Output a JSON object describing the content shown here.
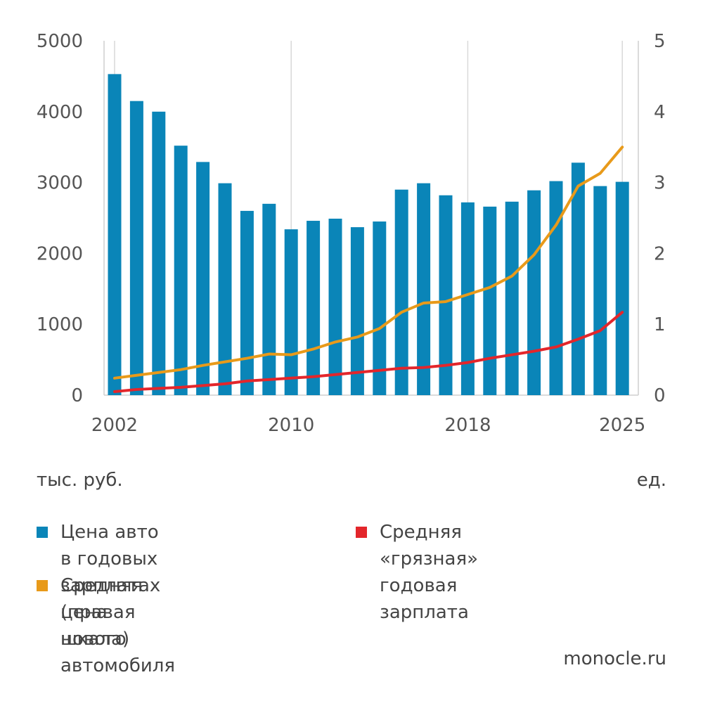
{
  "chart_data": {
    "type": "bar",
    "x": [
      2002,
      2003,
      2004,
      2005,
      2006,
      2007,
      2008,
      2009,
      2010,
      2011,
      2012,
      2013,
      2014,
      2015,
      2016,
      2017,
      2018,
      2019,
      2020,
      2021,
      2022,
      2023,
      2024,
      2025
    ],
    "x_tick_labels": [
      "2002",
      "2010",
      "2018",
      "2025"
    ],
    "y_left_ticks": [
      "0",
      "1000",
      "2000",
      "3000",
      "4000",
      "5000"
    ],
    "y_right_ticks": [
      "0",
      "1",
      "2",
      "3",
      "4",
      "5"
    ],
    "ylim_left": [
      0,
      5000
    ],
    "ylim_right": [
      0,
      5
    ],
    "grid": "vertical",
    "left_unit_label": "тыс. руб.",
    "right_unit_label": "ед.",
    "series": [
      {
        "name": "Цена авто в годовых зарплатах (правая шкала)",
        "type": "bar",
        "axis": "right",
        "color": "#0a85b8",
        "values": [
          4.53,
          4.15,
          4.0,
          3.52,
          3.29,
          2.99,
          2.6,
          2.7,
          2.34,
          2.46,
          2.49,
          2.37,
          2.45,
          2.9,
          2.99,
          2.82,
          2.72,
          2.66,
          2.73,
          2.89,
          3.02,
          3.28,
          2.95,
          3.01
        ]
      },
      {
        "name": "Средняя цена нового автомобиля",
        "type": "line",
        "axis": "left",
        "color": "#e89a1a",
        "values": [
          240,
          280,
          320,
          360,
          420,
          470,
          520,
          580,
          570,
          650,
          750,
          820,
          940,
          1170,
          1300,
          1320,
          1420,
          1520,
          1680,
          1980,
          2400,
          2950,
          3130,
          3500
        ]
      },
      {
        "name": "Средняя «грязная» годовая зарплата",
        "type": "line",
        "axis": "left",
        "color": "#e3262b",
        "values": [
          50,
          80,
          95,
          110,
          135,
          160,
          200,
          220,
          240,
          260,
          290,
          320,
          350,
          380,
          390,
          420,
          460,
          520,
          570,
          620,
          680,
          790,
          910,
          1170
        ]
      }
    ],
    "legend": {
      "bar": "Цена авто в годовых\nзарплатах (правая шкала)",
      "orange": "Средняя цена нового\nавтомобиля",
      "red": "Средняя «грязная»\nгодовая зарплата"
    }
  },
  "source": "monocle.ru"
}
